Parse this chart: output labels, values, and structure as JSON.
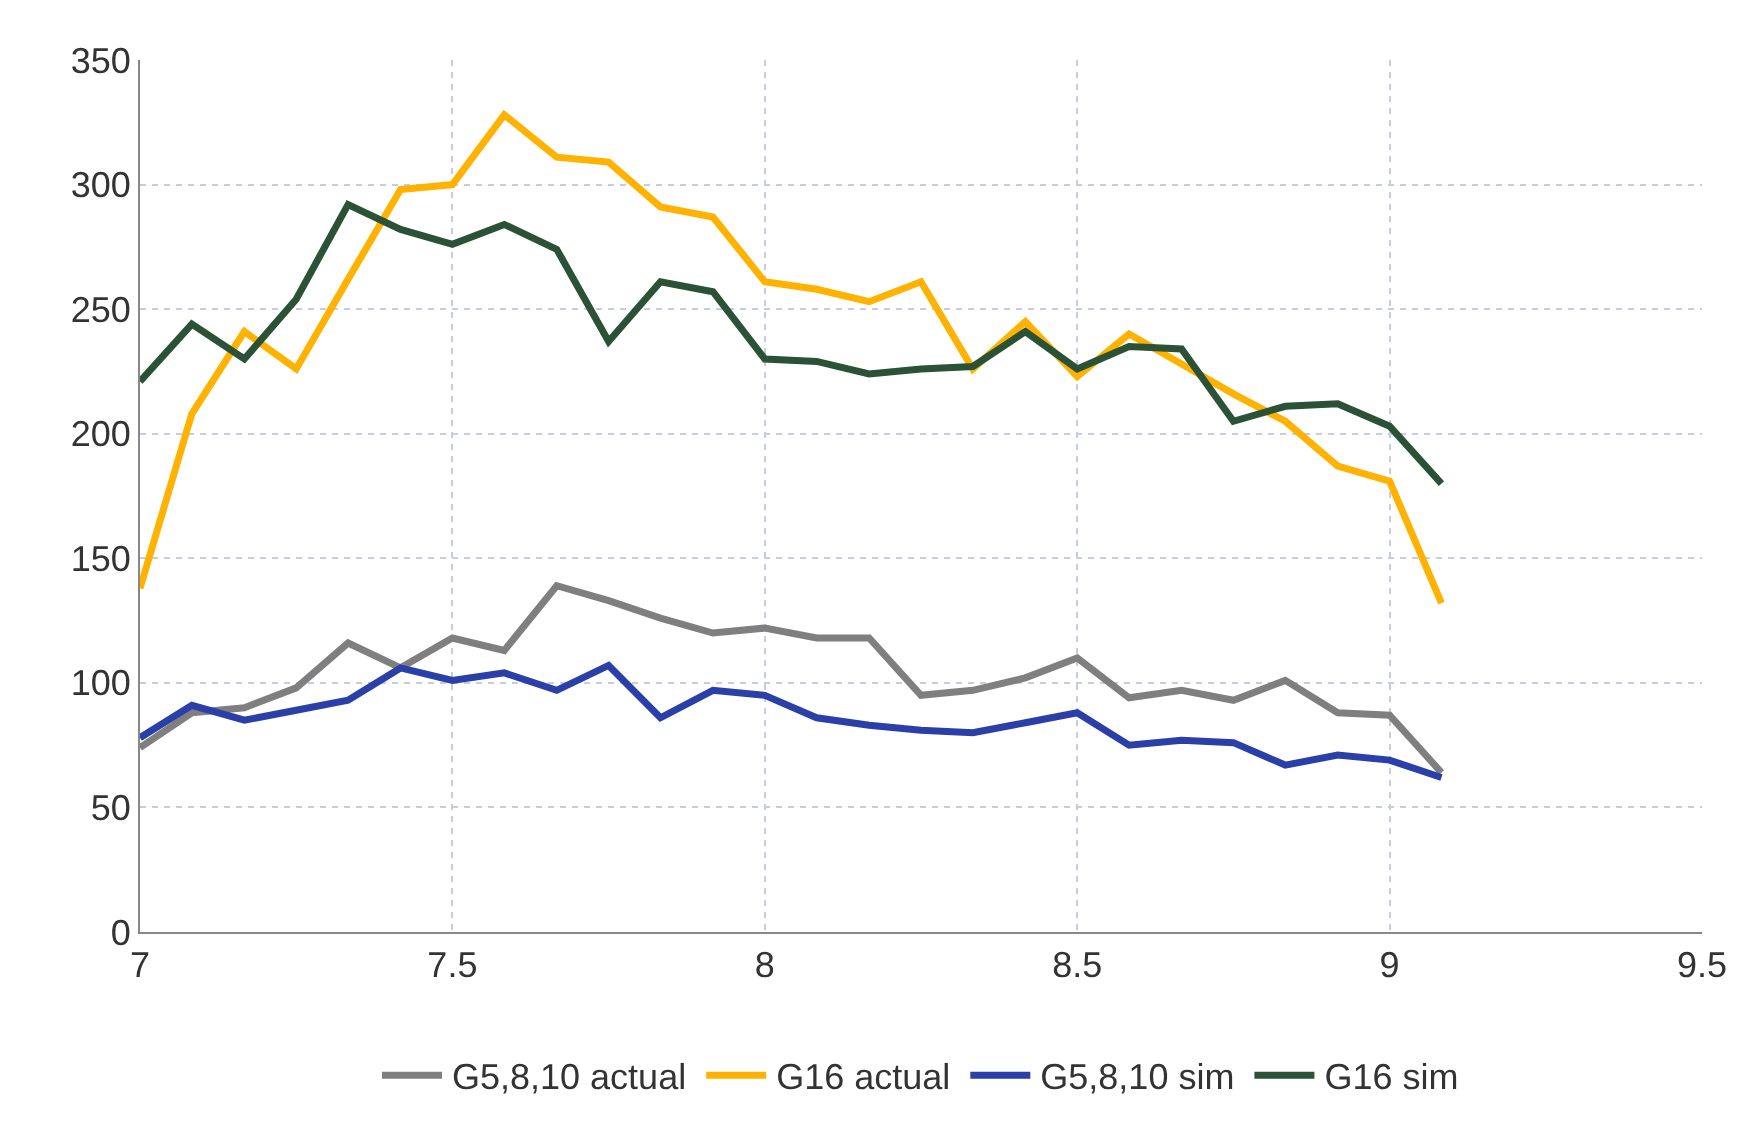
{
  "chart_data": {
    "type": "line",
    "x": [
      7,
      7.083,
      7.167,
      7.25,
      7.333,
      7.417,
      7.5,
      7.583,
      7.667,
      7.75,
      7.833,
      7.917,
      8,
      8.083,
      8.167,
      8.25,
      8.333,
      8.417,
      8.5,
      8.583,
      8.667,
      8.75,
      8.833,
      8.917,
      9,
      9.083
    ],
    "series": [
      {
        "name": "G5,8,10 actual",
        "color": "#7f7f7f",
        "values": [
          74,
          88,
          90,
          98,
          116,
          106,
          118,
          113,
          139,
          133,
          126,
          120,
          122,
          118,
          118,
          95,
          97,
          102,
          110,
          94,
          97,
          93,
          101,
          88,
          87,
          64
        ]
      },
      {
        "name": "G16 actual",
        "color": "#ffb300",
        "values": [
          138,
          208,
          241,
          226,
          262,
          298,
          300,
          328,
          311,
          309,
          291,
          287,
          261,
          258,
          253,
          261,
          226,
          245,
          223,
          240,
          228,
          216,
          205,
          187,
          181,
          132
        ]
      },
      {
        "name": "G5,8,10 sim",
        "color": "#2a3fa8",
        "values": [
          78,
          91,
          85,
          89,
          93,
          106,
          101,
          104,
          97,
          107,
          86,
          97,
          95,
          86,
          83,
          81,
          80,
          84,
          88,
          75,
          77,
          76,
          67,
          71,
          69,
          62
        ]
      },
      {
        "name": "G16 sim",
        "color": "#2b5236",
        "values": [
          221,
          244,
          230,
          254,
          292,
          282,
          276,
          284,
          274,
          237,
          261,
          257,
          230,
          229,
          224,
          226,
          227,
          241,
          226,
          235,
          234,
          205,
          211,
          212,
          203,
          180
        ]
      }
    ],
    "xlim": [
      7,
      9.5
    ],
    "xticks": [
      7,
      7.5,
      8,
      8.5,
      9,
      9.5
    ],
    "ylim": [
      0,
      350
    ],
    "yticks": [
      0,
      50,
      100,
      150,
      200,
      250,
      300,
      350
    ],
    "grid": true,
    "legend": "bottom",
    "marker": "none",
    "line_style": "solid"
  }
}
